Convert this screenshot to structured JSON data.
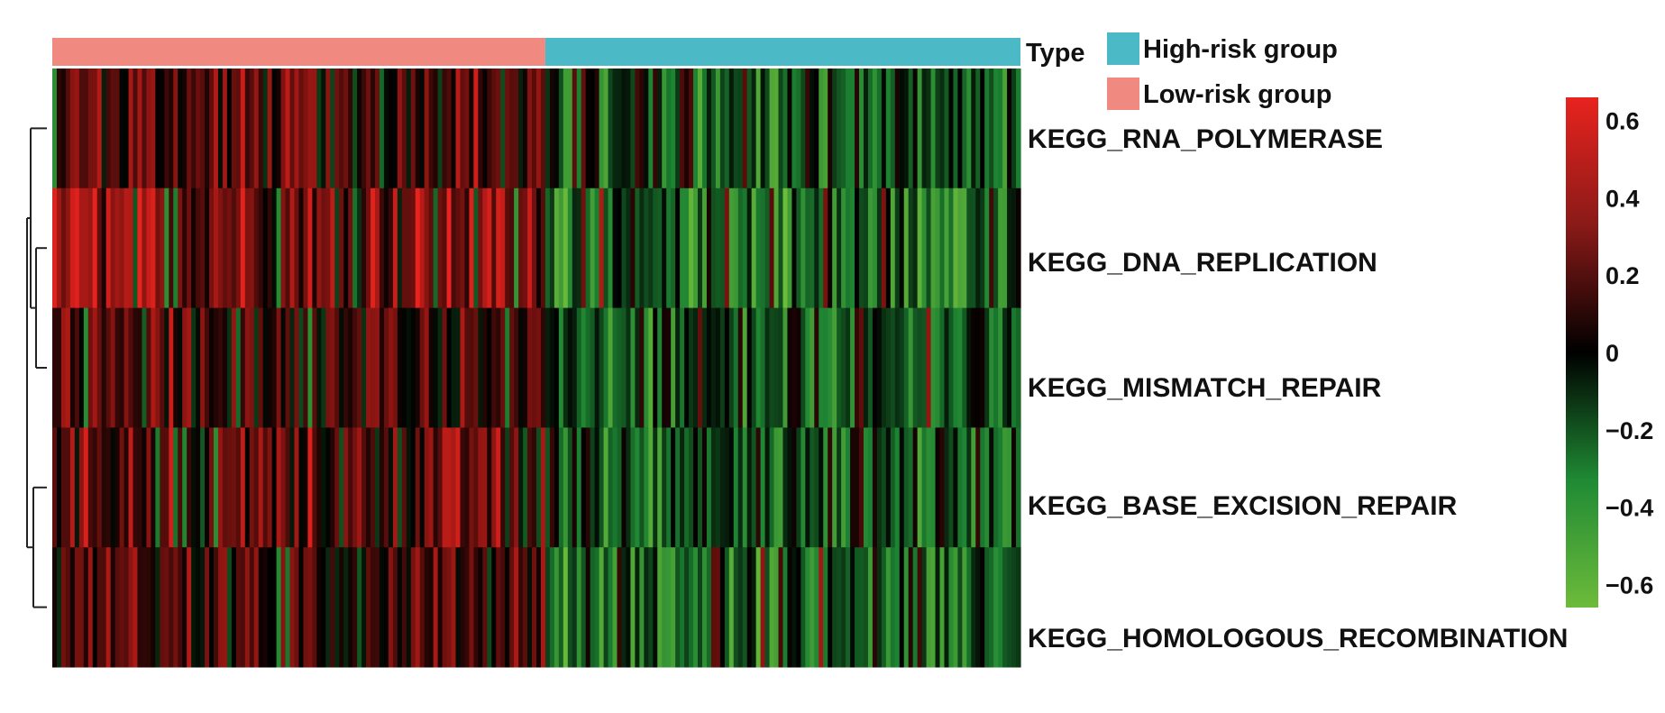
{
  "chart_data": {
    "type": "heatmap",
    "annotation": {
      "title": "Type",
      "legend": [
        {
          "label": "High-risk group",
          "color": "#4bbac6"
        },
        {
          "label": "Low-risk group",
          "color": "#f08a80"
        }
      ]
    },
    "rows": [
      "KEGG_RNA_POLYMERASE",
      "KEGG_DNA_REPLICATION",
      "KEGG_MISMATCH_REPAIR",
      "KEGG_BASE_EXCISION_REPAIR",
      "KEGG_HOMOLOGOUS_RECOMBINATION"
    ],
    "groups": [
      {
        "name": "Low-risk group",
        "n_samples": 110
      },
      {
        "name": "High-risk group",
        "n_samples": 106
      }
    ],
    "group_tendency": {
      "Low-risk group": [
        0.22,
        0.35,
        0.2,
        0.25,
        0.2
      ],
      "High-risk group": [
        -0.25,
        -0.3,
        -0.25,
        -0.2,
        -0.3
      ]
    },
    "colorbar": {
      "min": -0.66,
      "max": 0.66,
      "ticks": [
        "0.6",
        "0.4",
        "0.2",
        "0",
        "−0.2",
        "−0.4",
        "−0.6"
      ],
      "tick_values": [
        0.6,
        0.4,
        0.2,
        0,
        -0.2,
        -0.4,
        -0.6
      ],
      "colors": {
        "high": "#e8231e",
        "mid": "#000000",
        "low": "#6dbb3a"
      }
    },
    "row_dendrogram": {
      "merge_order": "((1,(2,3)),(4,5))"
    }
  }
}
